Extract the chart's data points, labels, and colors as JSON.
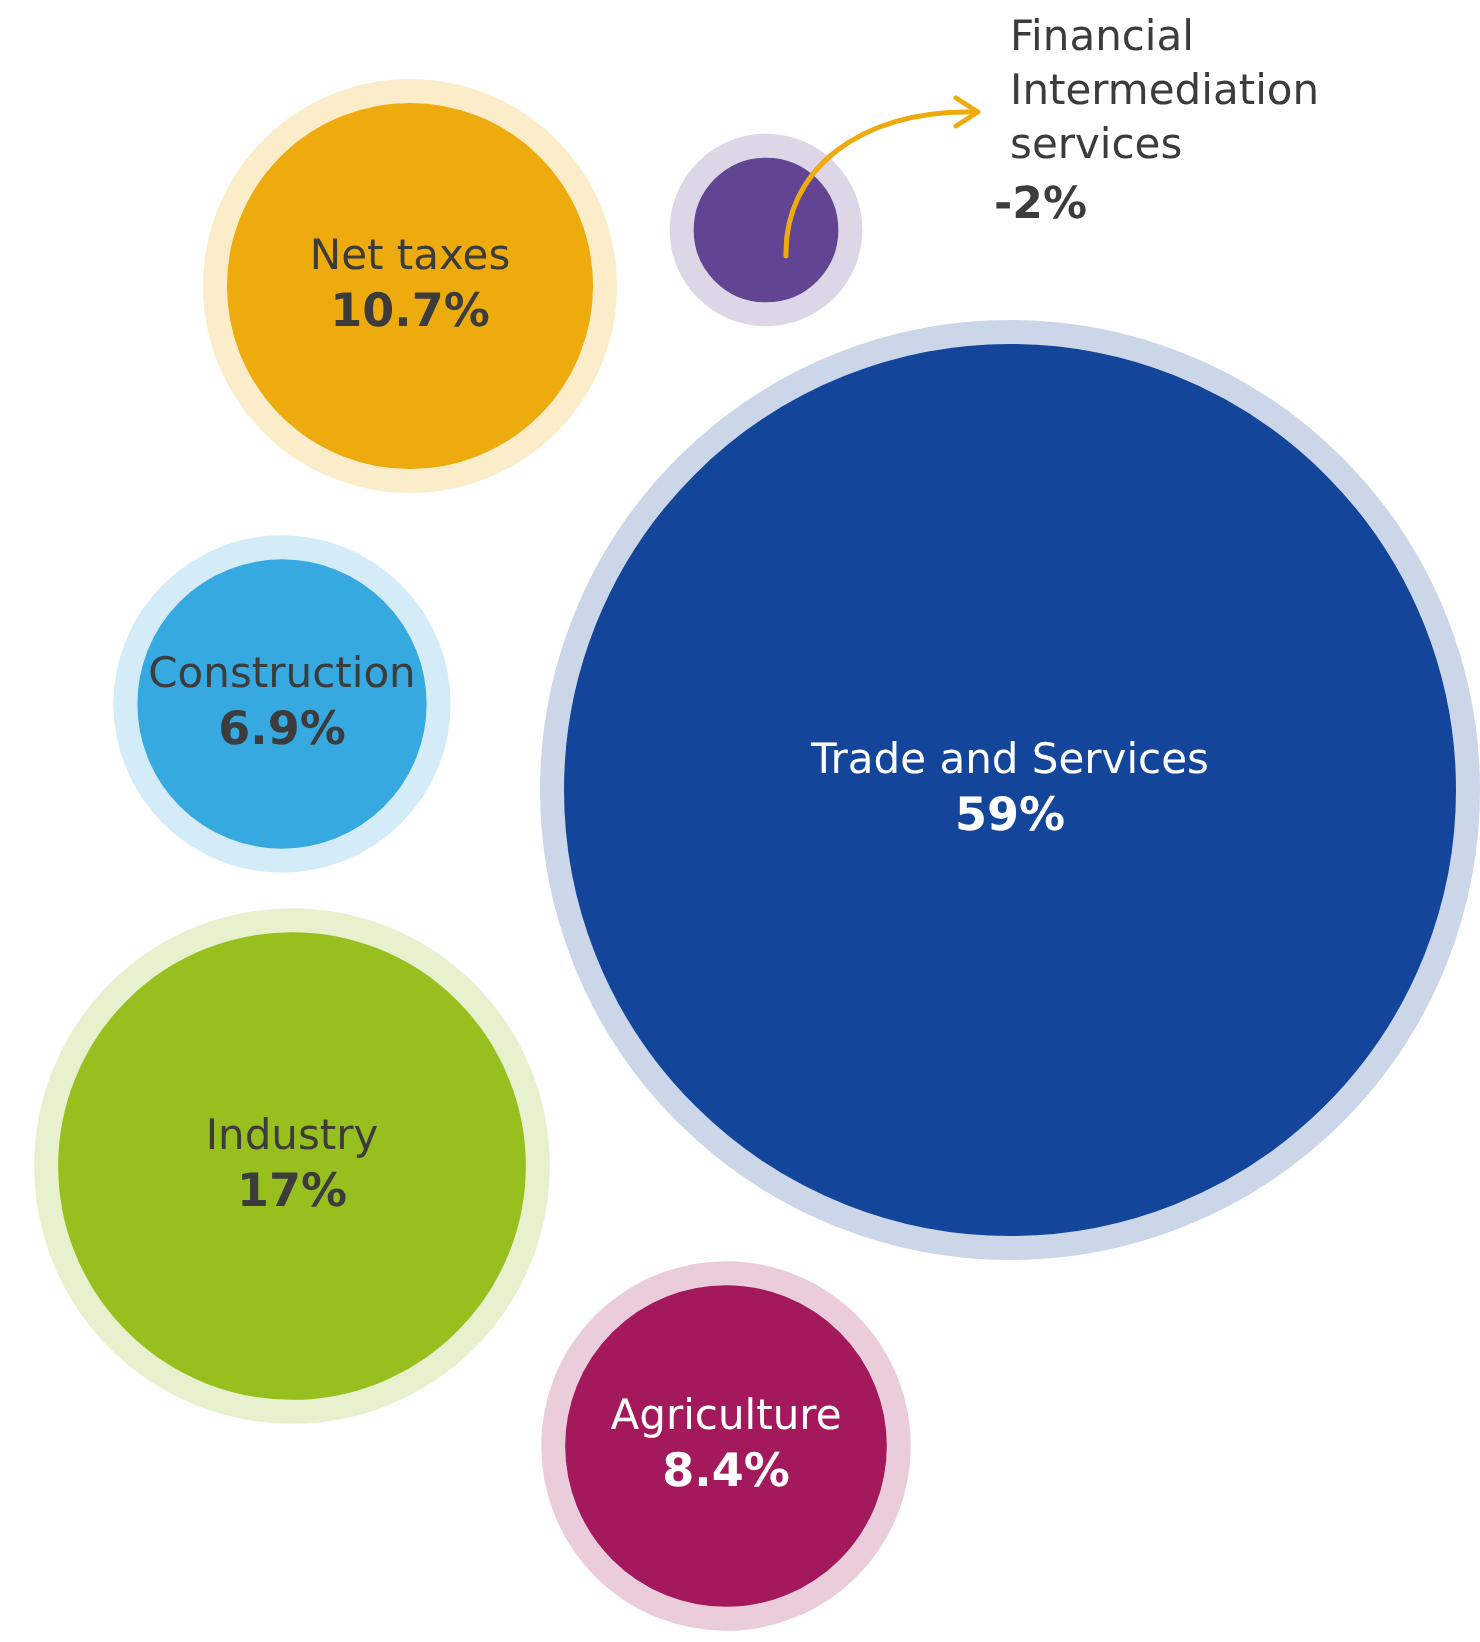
{
  "chart_data": {
    "type": "other",
    "categories": [
      "Financial Intermediation services",
      "Net taxes",
      "Construction",
      "Trade and Services",
      "Industry",
      "Agriculture"
    ],
    "values": [
      -2,
      10.7,
      6.9,
      59,
      17,
      8.4
    ],
    "value_labels": [
      "-2%",
      "10.7%",
      "6.9%",
      "59%",
      "17%",
      "8.4%"
    ],
    "colors": [
      "#614593",
      "#edab0e",
      "#36a9e1",
      "#13459a",
      "#97c01f",
      "#a3195b"
    ],
    "legend": false
  }
}
